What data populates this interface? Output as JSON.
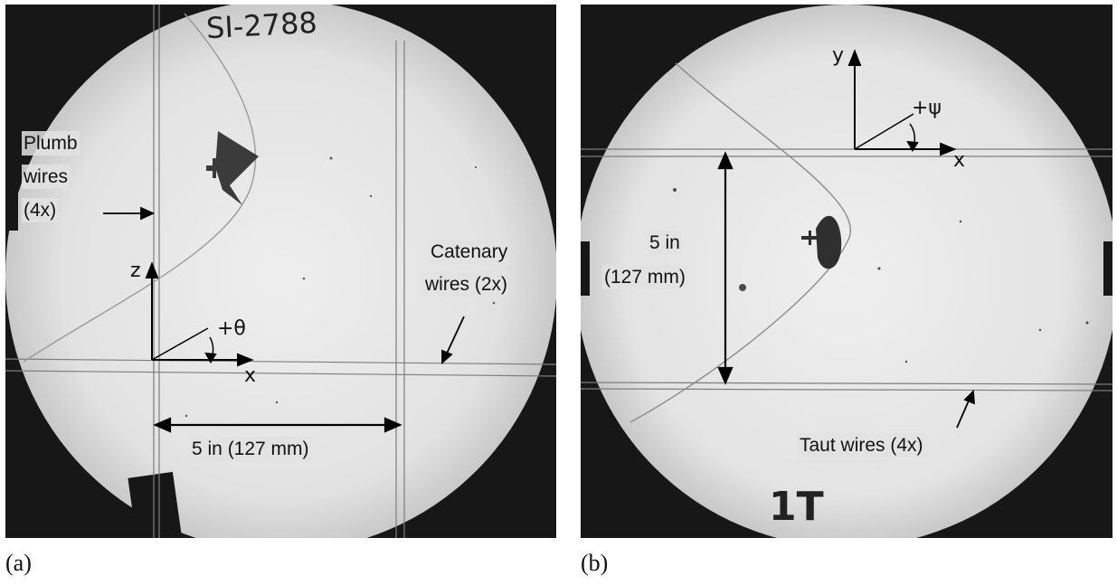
{
  "panel_a": {
    "caption": "(a)",
    "handwriting": "SI-2788",
    "plumb_label_1": "Plumb",
    "plumb_label_2": "wires",
    "plumb_label_3": "(4x)",
    "catenary_label_1": "Catenary",
    "catenary_label_2": "wires (2x)",
    "axis_z": "z",
    "axis_x": "x",
    "angle": "+θ",
    "dimension": "5 in (127 mm)"
  },
  "panel_b": {
    "caption": "(b)",
    "handwriting": "1T",
    "axis_y": "y",
    "axis_x": "x",
    "angle": "+ψ",
    "dimension_1": "5 in",
    "dimension_2": "(127 mm)",
    "taut_label": "Taut wires (4x)"
  }
}
